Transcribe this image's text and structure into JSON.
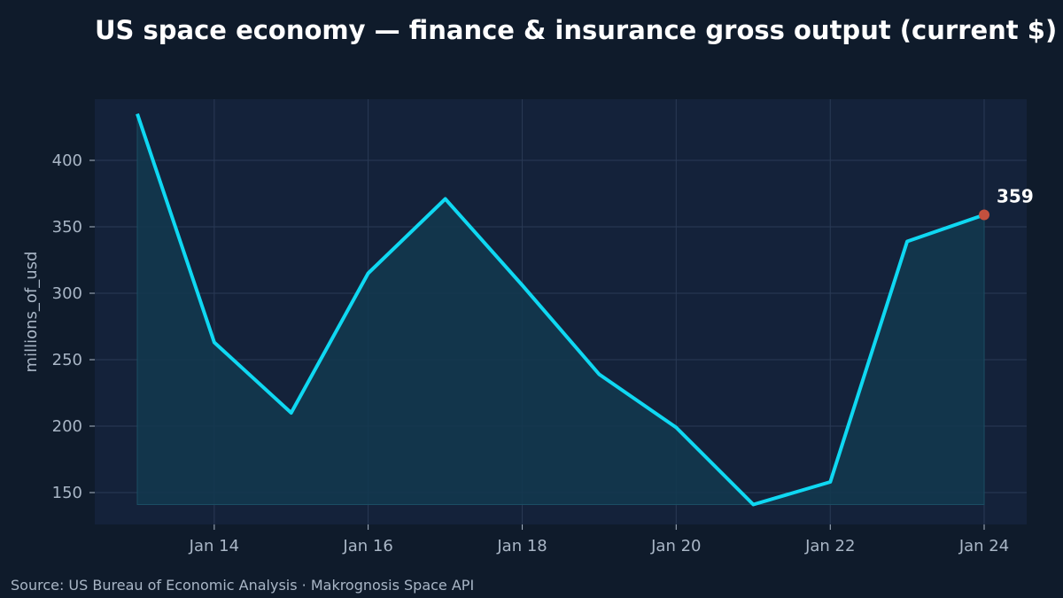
{
  "chart_data": {
    "type": "area",
    "title": "US space economy — finance & insurance gross output (current $)",
    "ylabel": "millions_of_usd",
    "xlabel": "",
    "x": [
      "2013-01",
      "2014-01",
      "2015-01",
      "2016-01",
      "2017-01",
      "2018-01",
      "2019-01",
      "2020-01",
      "2021-01",
      "2022-01",
      "2023-01",
      "2024-01"
    ],
    "x_ticks": [
      "2014-01",
      "2016-01",
      "2018-01",
      "2020-01",
      "2022-01",
      "2024-01"
    ],
    "x_tick_labels": [
      "Jan 14",
      "Jan 16",
      "Jan 18",
      "Jan 20",
      "Jan 22",
      "Jan 24"
    ],
    "ylim": [
      126,
      446
    ],
    "y_ticks": [
      150,
      200,
      250,
      300,
      350,
      400
    ],
    "series": [
      {
        "values": [
          435,
          263,
          210,
          315,
          371,
          306,
          239,
          199,
          141,
          158,
          339,
          359
        ]
      }
    ],
    "last_point_label": "359",
    "grid": true,
    "colors": {
      "line": "#0fd8f2",
      "fill": "#12384f",
      "marker": "#c4503e",
      "plot_bg": "#14223a",
      "grid": "#2a3a55"
    }
  },
  "source": "Source: US Bureau of Economic Analysis · Makrognosis Space API"
}
